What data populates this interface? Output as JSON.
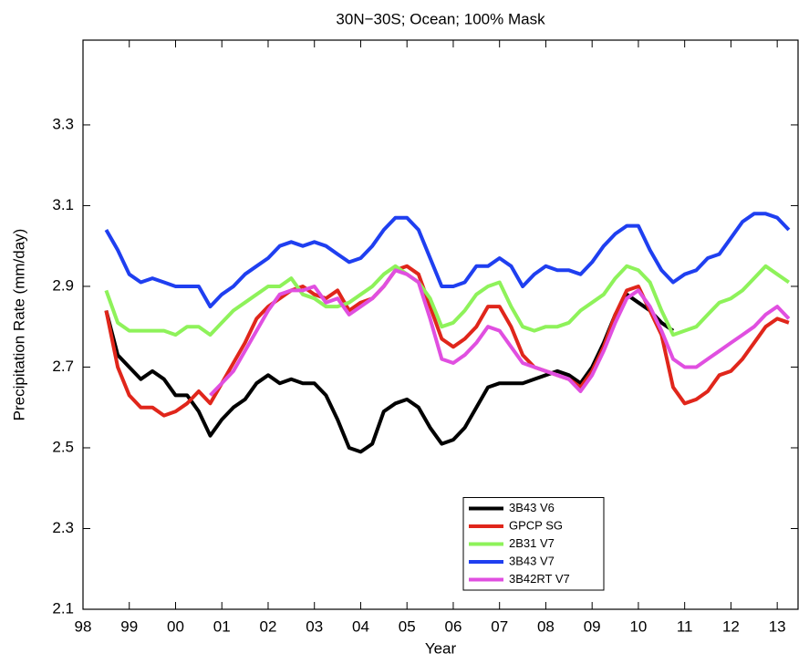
{
  "chart_data": {
    "type": "line",
    "title": "30N−30S; Ocean; 100% Mask",
    "x_label": "Year",
    "y_label": "Precipitation Rate (mm/day)",
    "x": [
      1998.5,
      1998.75,
      1999,
      1999.25,
      1999.5,
      1999.75,
      2000,
      2000.25,
      2000.5,
      2000.75,
      2001,
      2001.25,
      2001.5,
      2001.75,
      2002,
      2002.25,
      2002.5,
      2002.75,
      2003,
      2003.25,
      2003.5,
      2003.75,
      2004,
      2004.25,
      2004.5,
      2004.75,
      2005,
      2005.25,
      2005.5,
      2005.75,
      2006,
      2006.25,
      2006.5,
      2006.75,
      2007,
      2007.25,
      2007.5,
      2007.75,
      2008,
      2008.25,
      2008.5,
      2008.75,
      2009,
      2009.25,
      2009.5,
      2009.75,
      2010,
      2010.25,
      2010.5,
      2010.75,
      2011,
      2011.25,
      2011.5,
      2011.75,
      2012,
      2012.25,
      2012.5,
      2012.75,
      2013,
      2013.25
    ],
    "series": [
      {
        "name": "3B43 V6",
        "color": "#000000",
        "values": [
          2.84,
          2.73,
          2.7,
          2.67,
          2.69,
          2.67,
          2.63,
          2.63,
          2.59,
          2.53,
          2.57,
          2.6,
          2.62,
          2.66,
          2.68,
          2.66,
          2.67,
          2.66,
          2.66,
          2.63,
          2.57,
          2.5,
          2.49,
          2.51,
          2.59,
          2.61,
          2.62,
          2.6,
          2.55,
          2.51,
          2.52,
          2.55,
          2.6,
          2.65,
          2.66,
          2.66,
          2.66,
          2.67,
          2.68,
          2.69,
          2.68,
          2.66,
          2.7,
          2.76,
          2.83,
          2.88,
          2.86,
          2.84,
          2.81,
          2.79,
          null,
          null,
          null,
          null,
          null,
          null,
          null,
          null,
          null,
          null
        ]
      },
      {
        "name": "GPCP SG",
        "color": "#e0261b",
        "values": [
          2.84,
          2.7,
          2.63,
          2.6,
          2.6,
          2.58,
          2.59,
          2.61,
          2.64,
          2.61,
          2.66,
          2.71,
          2.76,
          2.82,
          2.85,
          2.87,
          2.89,
          2.9,
          2.88,
          2.87,
          2.89,
          2.84,
          2.86,
          2.87,
          2.9,
          2.94,
          2.95,
          2.93,
          2.85,
          2.77,
          2.75,
          2.77,
          2.8,
          2.85,
          2.85,
          2.8,
          2.73,
          2.7,
          2.69,
          2.68,
          2.67,
          2.65,
          2.69,
          2.75,
          2.83,
          2.89,
          2.9,
          2.84,
          2.78,
          2.65,
          2.61,
          2.62,
          2.64,
          2.68,
          2.69,
          2.72,
          2.76,
          2.8,
          2.82,
          2.81
        ]
      },
      {
        "name": "2B31 V7",
        "color": "#8ef25a",
        "values": [
          2.89,
          2.81,
          2.79,
          2.79,
          2.79,
          2.79,
          2.78,
          2.8,
          2.8,
          2.78,
          2.81,
          2.84,
          2.86,
          2.88,
          2.9,
          2.9,
          2.92,
          2.88,
          2.87,
          2.85,
          2.85,
          2.86,
          2.88,
          2.9,
          2.93,
          2.95,
          2.93,
          2.91,
          2.87,
          2.8,
          2.81,
          2.84,
          2.88,
          2.9,
          2.91,
          2.85,
          2.8,
          2.79,
          2.8,
          2.8,
          2.81,
          2.84,
          2.86,
          2.88,
          2.92,
          2.95,
          2.94,
          2.91,
          2.84,
          2.78,
          2.79,
          2.8,
          2.83,
          2.86,
          2.87,
          2.89,
          2.92,
          2.95,
          2.93,
          2.91
        ]
      },
      {
        "name": "3B43 V7",
        "color": "#1f3ff0",
        "values": [
          3.04,
          2.99,
          2.93,
          2.91,
          2.92,
          2.91,
          2.9,
          2.9,
          2.9,
          2.85,
          2.88,
          2.9,
          2.93,
          2.95,
          2.97,
          3.0,
          3.01,
          3.0,
          3.01,
          3.0,
          2.98,
          2.96,
          2.97,
          3.0,
          3.04,
          3.07,
          3.07,
          3.04,
          2.97,
          2.9,
          2.9,
          2.91,
          2.95,
          2.95,
          2.97,
          2.95,
          2.9,
          2.93,
          2.95,
          2.94,
          2.94,
          2.93,
          2.96,
          3.0,
          3.03,
          3.05,
          3.05,
          2.99,
          2.94,
          2.91,
          2.93,
          2.94,
          2.97,
          2.98,
          3.02,
          3.06,
          3.08,
          3.08,
          3.07,
          3.04
        ]
      },
      {
        "name": "3B42RT V7",
        "color": "#e04fe0",
        "values": [
          null,
          null,
          null,
          null,
          null,
          null,
          null,
          null,
          null,
          2.63,
          2.66,
          2.69,
          2.74,
          2.79,
          2.84,
          2.88,
          2.89,
          2.89,
          2.9,
          2.86,
          2.87,
          2.83,
          2.85,
          2.87,
          2.9,
          2.94,
          2.93,
          2.91,
          2.82,
          2.72,
          2.71,
          2.73,
          2.76,
          2.8,
          2.79,
          2.75,
          2.71,
          2.7,
          2.69,
          2.68,
          2.67,
          2.64,
          2.68,
          2.74,
          2.81,
          2.87,
          2.89,
          2.85,
          2.79,
          2.72,
          2.7,
          2.7,
          2.72,
          2.74,
          2.76,
          2.78,
          2.8,
          2.83,
          2.85,
          2.82
        ]
      }
    ],
    "xlim": [
      1998,
      2013.45
    ],
    "xticks": [
      {
        "value": 1998,
        "label": "98"
      },
      {
        "value": 1999,
        "label": "99"
      },
      {
        "value": 2000,
        "label": "00"
      },
      {
        "value": 2001,
        "label": "01"
      },
      {
        "value": 2002,
        "label": "02"
      },
      {
        "value": 2003,
        "label": "03"
      },
      {
        "value": 2004,
        "label": "04"
      },
      {
        "value": 2005,
        "label": "05"
      },
      {
        "value": 2006,
        "label": "06"
      },
      {
        "value": 2007,
        "label": "07"
      },
      {
        "value": 2008,
        "label": "08"
      },
      {
        "value": 2009,
        "label": "09"
      },
      {
        "value": 2010,
        "label": "10"
      },
      {
        "value": 2011,
        "label": "11"
      },
      {
        "value": 2012,
        "label": "12"
      },
      {
        "value": 2013,
        "label": "13"
      }
    ],
    "ylim": [
      2.1,
      3.51
    ],
    "yticks": [
      2.1,
      2.3,
      2.5,
      2.7,
      2.9,
      3.1,
      3.3
    ],
    "grid": false,
    "legend": "lower right"
  }
}
